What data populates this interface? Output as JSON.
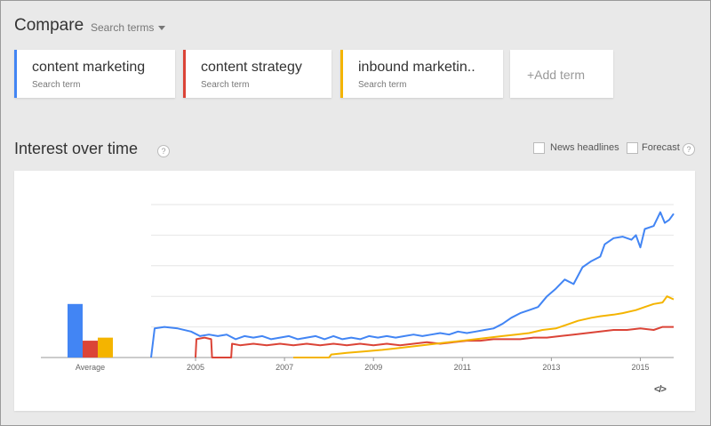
{
  "compare": {
    "title": "Compare",
    "dropdown_label": "Search terms"
  },
  "terms": [
    {
      "name": "content marketing",
      "sub": "Search term",
      "color": "#4285f4"
    },
    {
      "name": "content strategy",
      "sub": "Search term",
      "color": "#db4437"
    },
    {
      "name": "inbound marketin..",
      "sub": "Search term",
      "color": "#f4b400"
    }
  ],
  "add_term_label": "+Add term",
  "interest": {
    "title": "Interest over time",
    "help": "?",
    "news_headlines_label": "News headlines",
    "forecast_label": "Forecast",
    "embed_label": "</>"
  },
  "chart_data": {
    "type": "line",
    "xlabel": "",
    "ylabel": "",
    "ylim": [
      0,
      100
    ],
    "x_range": [
      2004.0,
      2015.75
    ],
    "x_ticks": [
      "2005",
      "2007",
      "2009",
      "2011",
      "2013",
      "2015"
    ],
    "grid": true,
    "average": {
      "label": "Average",
      "values": [
        35,
        11,
        13
      ],
      "colors": [
        "#4285f4",
        "#db4437",
        "#f4b400"
      ]
    },
    "series": [
      {
        "color": "#4285f4",
        "points": [
          [
            2004.0,
            0
          ],
          [
            2004.08,
            19
          ],
          [
            2004.3,
            20
          ],
          [
            2004.6,
            19
          ],
          [
            2004.9,
            17
          ],
          [
            2005.1,
            14
          ],
          [
            2005.3,
            15
          ],
          [
            2005.5,
            14
          ],
          [
            2005.7,
            15
          ],
          [
            2005.9,
            12
          ],
          [
            2006.1,
            14
          ],
          [
            2006.3,
            13
          ],
          [
            2006.5,
            14
          ],
          [
            2006.7,
            12
          ],
          [
            2006.9,
            13
          ],
          [
            2007.1,
            14
          ],
          [
            2007.3,
            12
          ],
          [
            2007.5,
            13
          ],
          [
            2007.7,
            14
          ],
          [
            2007.9,
            12
          ],
          [
            2008.1,
            14
          ],
          [
            2008.3,
            12
          ],
          [
            2008.5,
            13
          ],
          [
            2008.7,
            12
          ],
          [
            2008.9,
            14
          ],
          [
            2009.1,
            13
          ],
          [
            2009.3,
            14
          ],
          [
            2009.5,
            13
          ],
          [
            2009.7,
            14
          ],
          [
            2009.9,
            15
          ],
          [
            2010.1,
            14
          ],
          [
            2010.3,
            15
          ],
          [
            2010.5,
            16
          ],
          [
            2010.7,
            15
          ],
          [
            2010.9,
            17
          ],
          [
            2011.1,
            16
          ],
          [
            2011.3,
            17
          ],
          [
            2011.5,
            18
          ],
          [
            2011.7,
            19
          ],
          [
            2011.9,
            22
          ],
          [
            2012.1,
            26
          ],
          [
            2012.3,
            29
          ],
          [
            2012.5,
            31
          ],
          [
            2012.7,
            33
          ],
          [
            2012.9,
            40
          ],
          [
            2013.1,
            45
          ],
          [
            2013.3,
            51
          ],
          [
            2013.5,
            48
          ],
          [
            2013.7,
            59
          ],
          [
            2013.9,
            63
          ],
          [
            2014.1,
            66
          ],
          [
            2014.2,
            74
          ],
          [
            2014.4,
            78
          ],
          [
            2014.6,
            79
          ],
          [
            2014.8,
            77
          ],
          [
            2014.9,
            80
          ],
          [
            2015.0,
            72
          ],
          [
            2015.1,
            84
          ],
          [
            2015.3,
            86
          ],
          [
            2015.45,
            95
          ],
          [
            2015.55,
            88
          ],
          [
            2015.65,
            90
          ],
          [
            2015.75,
            94
          ]
        ]
      },
      {
        "color": "#db4437",
        "points": [
          [
            2005.0,
            0
          ],
          [
            2005.02,
            12
          ],
          [
            2005.2,
            13
          ],
          [
            2005.35,
            12
          ],
          [
            2005.37,
            0
          ],
          [
            2005.8,
            0
          ],
          [
            2005.82,
            9
          ],
          [
            2006.0,
            8
          ],
          [
            2006.3,
            9
          ],
          [
            2006.6,
            8
          ],
          [
            2006.9,
            9
          ],
          [
            2007.2,
            8
          ],
          [
            2007.5,
            9
          ],
          [
            2007.8,
            8
          ],
          [
            2008.1,
            9
          ],
          [
            2008.4,
            8
          ],
          [
            2008.7,
            9
          ],
          [
            2009.0,
            8
          ],
          [
            2009.3,
            9
          ],
          [
            2009.6,
            8
          ],
          [
            2009.9,
            9
          ],
          [
            2010.2,
            10
          ],
          [
            2010.5,
            9
          ],
          [
            2010.8,
            10
          ],
          [
            2011.1,
            11
          ],
          [
            2011.4,
            11
          ],
          [
            2011.7,
            12
          ],
          [
            2012.0,
            12
          ],
          [
            2012.3,
            12
          ],
          [
            2012.6,
            13
          ],
          [
            2012.9,
            13
          ],
          [
            2013.2,
            14
          ],
          [
            2013.5,
            15
          ],
          [
            2013.8,
            16
          ],
          [
            2014.1,
            17
          ],
          [
            2014.4,
            18
          ],
          [
            2014.7,
            18
          ],
          [
            2015.0,
            19
          ],
          [
            2015.3,
            18
          ],
          [
            2015.5,
            20
          ],
          [
            2015.75,
            20
          ]
        ]
      },
      {
        "color": "#f4b400",
        "points": [
          [
            2007.2,
            0
          ],
          [
            2008.0,
            0
          ],
          [
            2008.05,
            2
          ],
          [
            2008.4,
            3
          ],
          [
            2008.8,
            4
          ],
          [
            2009.2,
            5
          ],
          [
            2009.5,
            6
          ],
          [
            2009.8,
            7
          ],
          [
            2010.1,
            8
          ],
          [
            2010.4,
            9
          ],
          [
            2010.7,
            10
          ],
          [
            2011.0,
            11
          ],
          [
            2011.3,
            12
          ],
          [
            2011.6,
            13
          ],
          [
            2011.9,
            14
          ],
          [
            2012.2,
            15
          ],
          [
            2012.5,
            16
          ],
          [
            2012.8,
            18
          ],
          [
            2013.1,
            19
          ],
          [
            2013.4,
            22
          ],
          [
            2013.6,
            24
          ],
          [
            2013.9,
            26
          ],
          [
            2014.1,
            27
          ],
          [
            2014.4,
            28
          ],
          [
            2014.6,
            29
          ],
          [
            2014.9,
            31
          ],
          [
            2015.1,
            33
          ],
          [
            2015.3,
            35
          ],
          [
            2015.5,
            36
          ],
          [
            2015.6,
            40
          ],
          [
            2015.75,
            38
          ]
        ]
      }
    ]
  }
}
